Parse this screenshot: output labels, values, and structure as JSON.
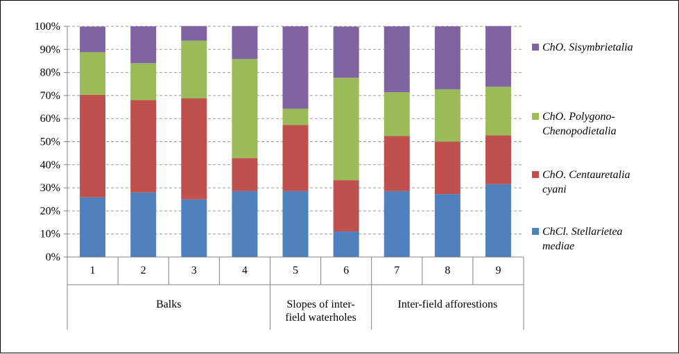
{
  "chart_data": {
    "type": "bar",
    "stacked": "percent",
    "categories": [
      "1",
      "2",
      "3",
      "4",
      "5",
      "6",
      "7",
      "8",
      "9"
    ],
    "groups": [
      {
        "label_lines": [
          "Balks"
        ],
        "span": [
          0,
          3
        ]
      },
      {
        "label_lines": [
          "Slopes of inter-",
          "field waterholes"
        ],
        "span": [
          4,
          5
        ]
      },
      {
        "label_lines": [
          "Inter-field afforestions"
        ],
        "span": [
          6,
          8
        ]
      }
    ],
    "series": [
      {
        "name": "ChCl. Stellarietea mediae",
        "legend_lines": [
          "ChCl. Stellarietea",
          "mediae"
        ],
        "color": "#4f81bd",
        "values": [
          25.9,
          28.0,
          25.0,
          28.6,
          28.6,
          11.1,
          28.6,
          27.3,
          31.6
        ]
      },
      {
        "name": "ChO. Centauretalia cyani",
        "legend_lines": [
          "ChO. Centauretalia",
          "cyani"
        ],
        "color": "#c0504d",
        "values": [
          44.4,
          40.0,
          43.8,
          14.3,
          28.6,
          22.2,
          23.8,
          22.7,
          21.1
        ]
      },
      {
        "name": "ChO. Polygono-Chenopodietalia",
        "legend_lines": [
          "ChO. Polygono-",
          "Chenopodietalia"
        ],
        "color": "#9bbb59",
        "values": [
          18.5,
          16.0,
          25.0,
          42.9,
          7.1,
          44.4,
          19.0,
          22.7,
          21.1
        ]
      },
      {
        "name": "ChO. Sisymbrietalia",
        "legend_lines": [
          "ChO. Sisymbrietalia"
        ],
        "color": "#8064a2",
        "values": [
          11.1,
          16.0,
          6.3,
          14.3,
          35.7,
          22.2,
          28.6,
          27.3,
          26.3
        ]
      }
    ],
    "y_ticks": [
      "0%",
      "10%",
      "20%",
      "30%",
      "40%",
      "50%",
      "60%",
      "70%",
      "80%",
      "90%",
      "100%"
    ],
    "ylim": [
      0,
      100
    ],
    "grid": "horizontal dashed",
    "legend_position": "right"
  }
}
